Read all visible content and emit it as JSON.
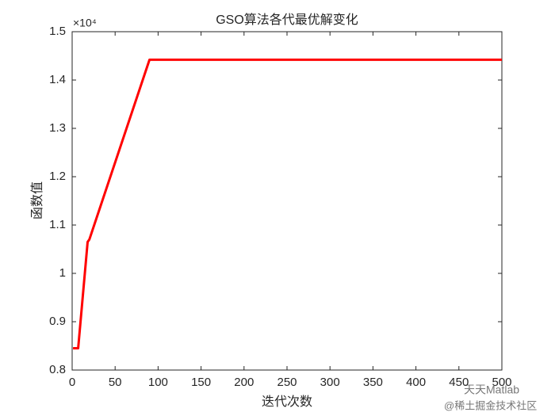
{
  "chart_data": {
    "type": "line",
    "title": "GSO算法各代最优解变化",
    "x_label": "迭代次数",
    "y_label": "函数值",
    "y_exponent_label": "×10⁴",
    "x": [
      1,
      7,
      18,
      20,
      90,
      500
    ],
    "values": [
      0.845,
      0.845,
      1.065,
      1.07,
      1.442,
      1.442
    ],
    "color": "#ff0000",
    "xlim": [
      0,
      500
    ],
    "xticks": [
      0,
      50,
      100,
      150,
      200,
      250,
      300,
      350,
      400,
      450,
      500
    ],
    "ylim": [
      0.8,
      1.5
    ],
    "yticks": [
      0.8,
      0.9,
      1,
      1.1,
      1.2,
      1.3,
      1.4,
      1.5
    ],
    "grid": false,
    "watermark": [
      "天天Matlab",
      "@稀土掘金技术社区"
    ]
  }
}
